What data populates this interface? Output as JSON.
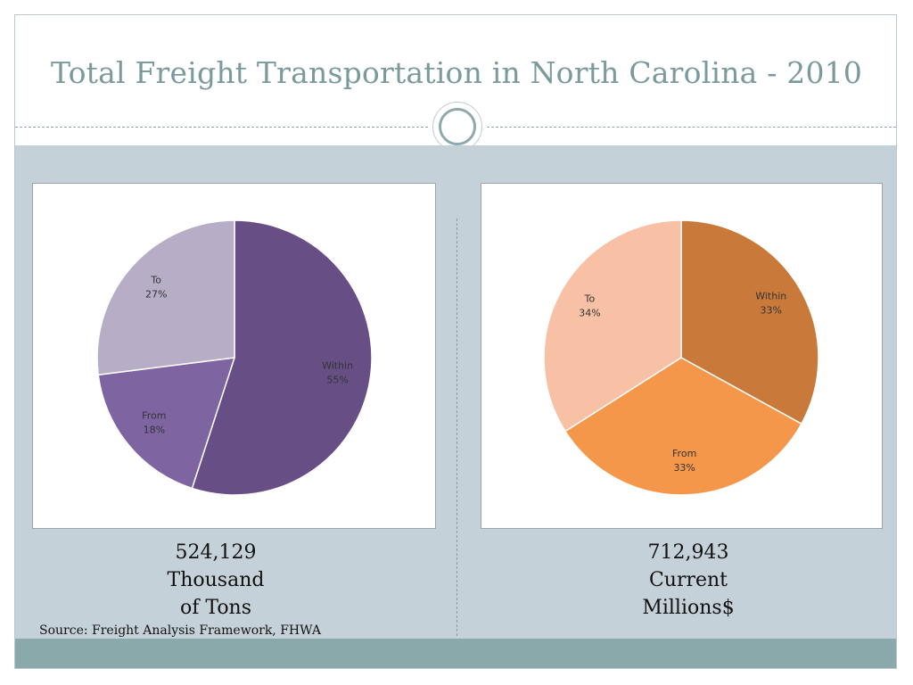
{
  "slide": {
    "title": "Total Freight Transportation in North Carolina - 2010",
    "source": "Source: Freight Analysis Framework, FHWA",
    "colors": {
      "title": "#7a9a9c",
      "band": "#c5d1d8",
      "footer": "#8aa9aa"
    }
  },
  "captions": [
    {
      "lines": [
        "524,129",
        "Thousand",
        "of Tons"
      ]
    },
    {
      "lines": [
        "712,943",
        "Current",
        "Millions$"
      ]
    }
  ],
  "chart_data": [
    {
      "type": "pie",
      "title": "",
      "slices": [
        {
          "name": "Within",
          "value": 55,
          "label": "55%",
          "color": "#674f86"
        },
        {
          "name": "From",
          "value": 18,
          "label": "18%",
          "color": "#7e64a1"
        },
        {
          "name": "To",
          "value": 27,
          "label": "27%",
          "color": "#b7adc7"
        }
      ]
    },
    {
      "type": "pie",
      "title": "",
      "slices": [
        {
          "name": "Within",
          "value": 33,
          "label": "33%",
          "color": "#c97a3a"
        },
        {
          "name": "From",
          "value": 33,
          "label": "33%",
          "color": "#f5974a"
        },
        {
          "name": "To",
          "value": 34,
          "label": "34%",
          "color": "#f8c1a6"
        }
      ]
    }
  ]
}
